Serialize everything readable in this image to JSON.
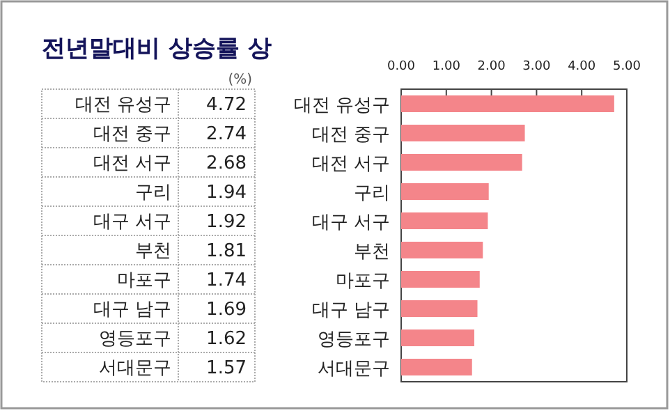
{
  "chart_data": {
    "type": "bar",
    "orientation": "horizontal",
    "title": "전년말대비 상승률 상",
    "annotations": [
      "(%)"
    ],
    "categories": [
      "대전 유성구",
      "대전 중구",
      "대전 서구",
      "구리",
      "대구 서구",
      "부천",
      "마포구",
      "대구 남구",
      "영등포구",
      "서대문구"
    ],
    "values": [
      4.72,
      2.74,
      2.68,
      1.94,
      1.92,
      1.81,
      1.74,
      1.69,
      1.62,
      1.57
    ],
    "color": "#f4858a",
    "value_labels": [
      "4.72",
      "2.74",
      "2.68",
      "1.94",
      "1.92",
      "1.81",
      "1.74",
      "1.69",
      "1.62",
      "1.57"
    ],
    "xlim": [
      0,
      5
    ],
    "xticks": [
      {
        "value": 0,
        "label": "0.00"
      },
      {
        "value": 1,
        "label": "1.00"
      },
      {
        "value": 2,
        "label": "2.00"
      },
      {
        "value": 3,
        "label": "3.00"
      },
      {
        "value": 4,
        "label": "4.00"
      },
      {
        "value": 5,
        "label": "5.00"
      }
    ],
    "grid": false
  }
}
